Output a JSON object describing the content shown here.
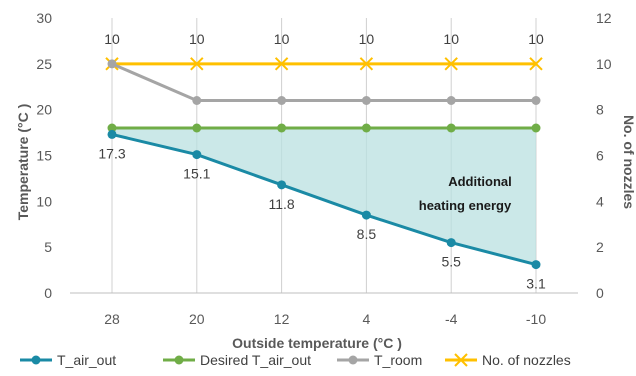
{
  "chart_data": {
    "type": "line",
    "categories": [
      "28",
      "20",
      "12",
      "4",
      "-4",
      "-10"
    ],
    "xlabel": "Outside temperature (°C )",
    "ylabel": "Temperature (°C )",
    "y2label": "No. of nozzles",
    "ylim": [
      0,
      30
    ],
    "yticks": [
      0,
      5,
      10,
      15,
      20,
      25,
      30
    ],
    "y2lim": [
      0,
      12
    ],
    "y2ticks": [
      0,
      2,
      4,
      6,
      8,
      10,
      12
    ],
    "grid": "vertical",
    "legend_position": "bottom",
    "series": [
      {
        "name": "T_air_out",
        "axis": "left",
        "values": [
          17.3,
          15.1,
          11.8,
          8.5,
          5.5,
          3.1
        ],
        "color": "#1a8aa5",
        "marker": "circle",
        "labels": [
          "17.3",
          "15.1",
          "11.8",
          "8.5",
          "5.5",
          "3.1"
        ]
      },
      {
        "name": "Desired T_air_out",
        "axis": "left",
        "values": [
          18,
          18,
          18,
          18,
          18,
          18
        ],
        "color": "#70ad47",
        "marker": "circle"
      },
      {
        "name": "T_room",
        "axis": "left",
        "values": [
          25,
          21,
          21,
          21,
          21,
          21
        ],
        "color": "#a5a5a5",
        "marker": "circle"
      },
      {
        "name": "No. of nozzles",
        "axis": "right",
        "values": [
          10,
          10,
          10,
          10,
          10,
          10
        ],
        "color": "#ffc000",
        "marker": "x",
        "labels": [
          "10",
          "10",
          "10",
          "10",
          "10",
          "10"
        ]
      }
    ],
    "fill_between": {
      "upper": "Desired T_air_out",
      "lower": "T_air_out",
      "color": "#b9e0e0"
    },
    "annotation": {
      "lines": [
        "Additional",
        "heating energy"
      ]
    }
  }
}
